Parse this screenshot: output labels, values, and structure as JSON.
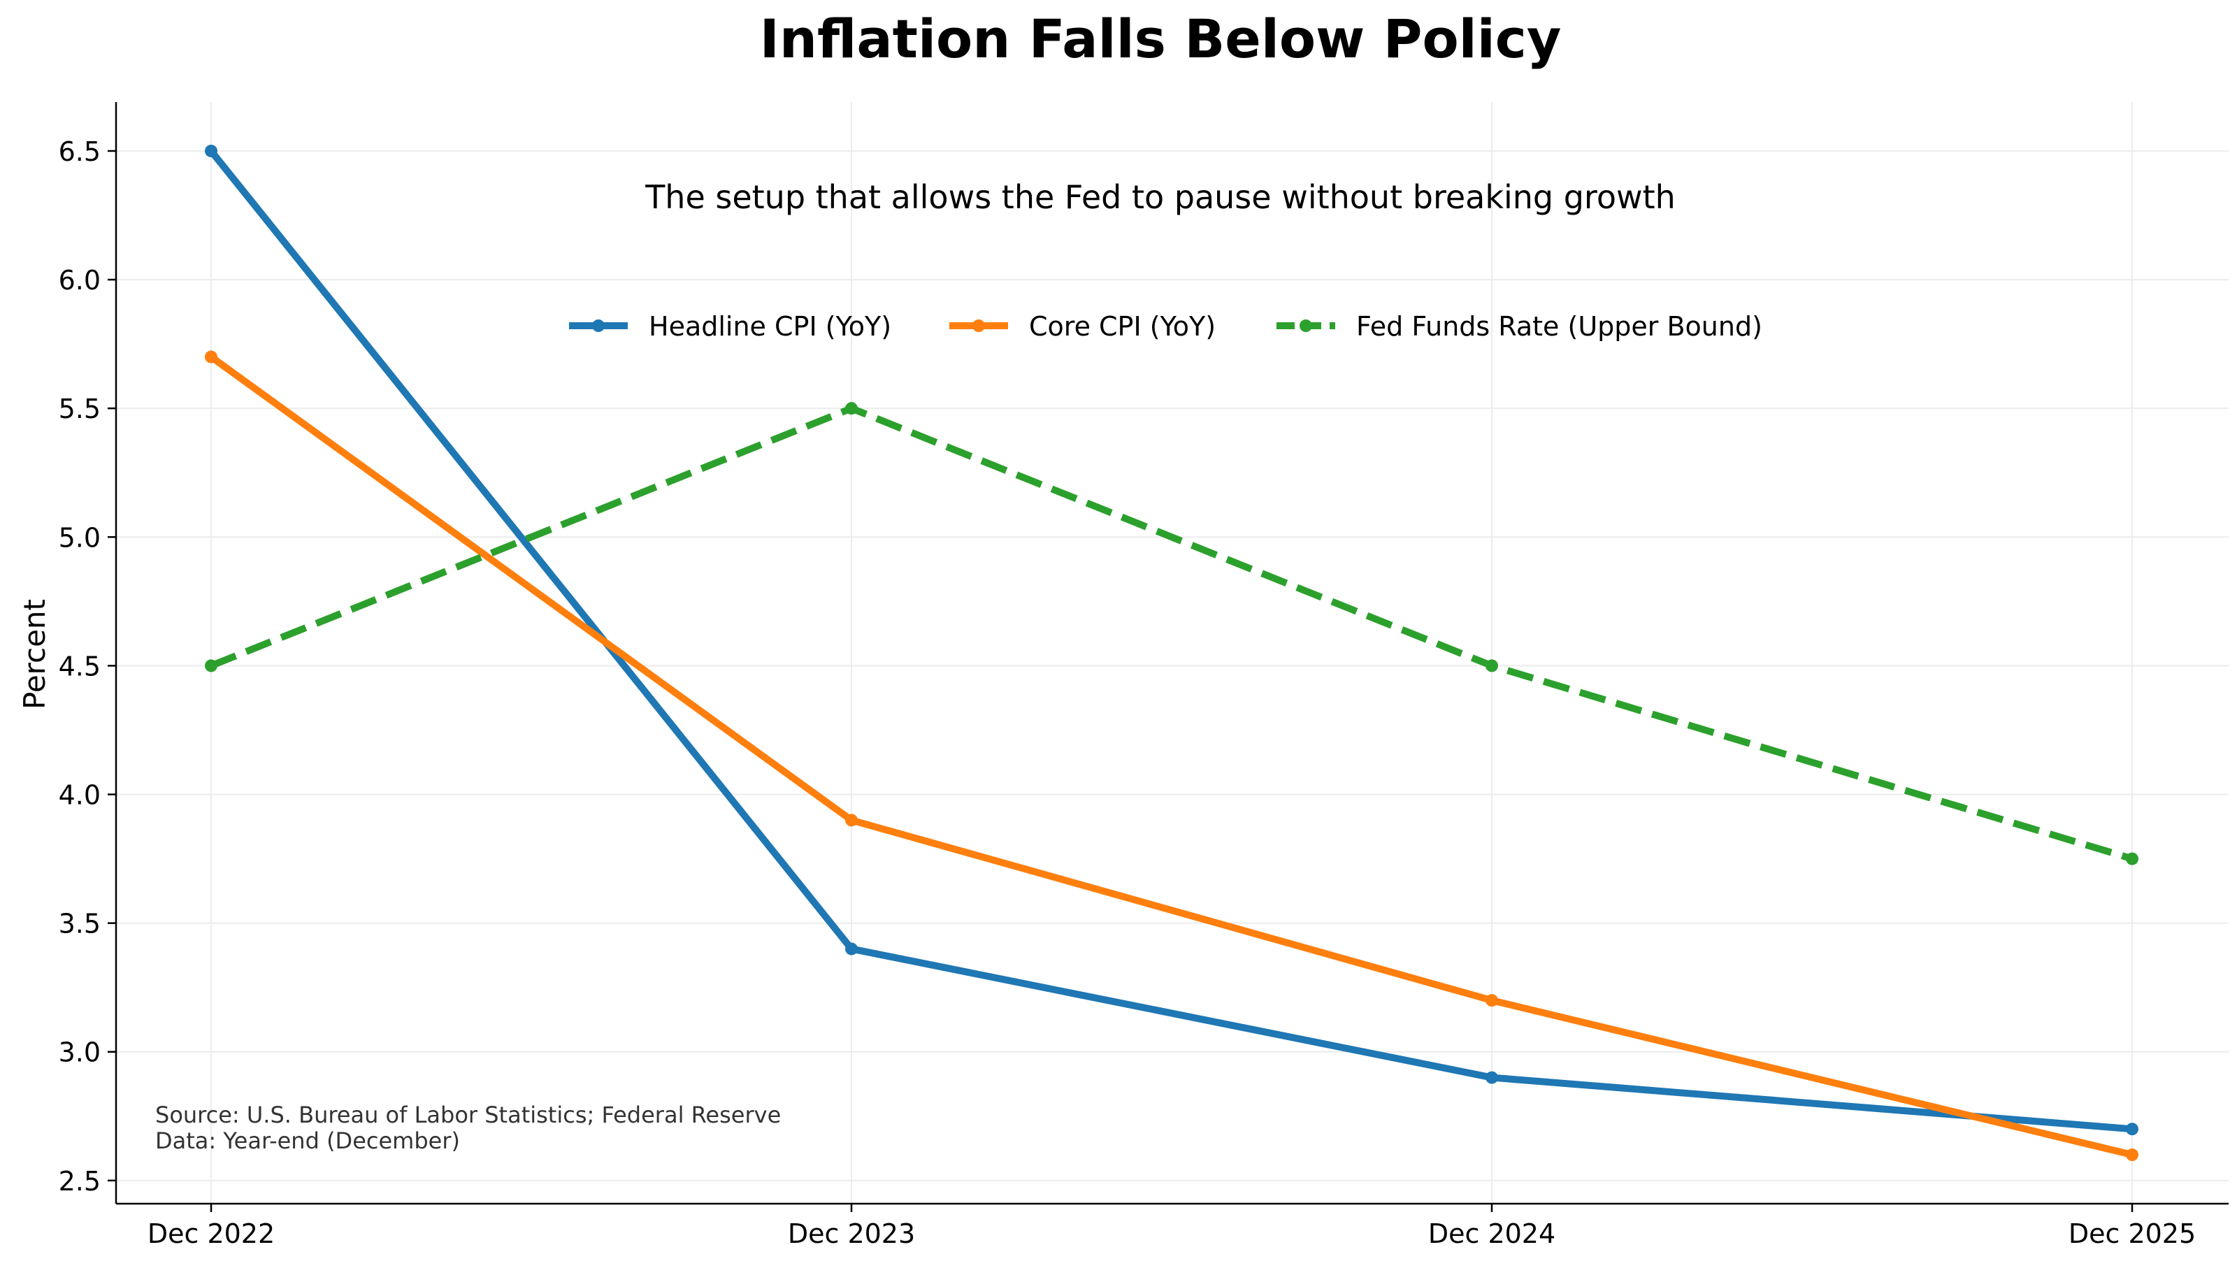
{
  "chart_data": {
    "type": "line",
    "title": "Inflation Falls Below Policy",
    "subtitle": "The setup that allows the Fed to pause without breaking growth",
    "xlabel": "",
    "ylabel": "Percent",
    "categories": [
      "Dec 2022",
      "Dec 2023",
      "Dec 2024",
      "Dec 2025"
    ],
    "ylim": [
      2.41,
      6.69
    ],
    "yticks": [
      2.5,
      3.0,
      3.5,
      4.0,
      4.5,
      5.0,
      5.5,
      6.0,
      6.5
    ],
    "ytick_labels": [
      "2.5",
      "3.0",
      "3.5",
      "4.0",
      "4.5",
      "5.0",
      "5.5",
      "6.0",
      "6.5"
    ],
    "grid": true,
    "legend_position": "top-center",
    "series": [
      {
        "name": "Headline CPI (YoY)",
        "values": [
          6.5,
          3.4,
          2.9,
          2.7
        ],
        "color": "#1f77b4",
        "style": "solid"
      },
      {
        "name": "Core CPI (YoY)",
        "values": [
          5.7,
          3.9,
          3.2,
          2.6
        ],
        "color": "#ff7f0e",
        "style": "solid"
      },
      {
        "name": "Fed Funds Rate (Upper Bound)",
        "values": [
          4.5,
          5.5,
          4.5,
          3.75
        ],
        "color": "#2ca02c",
        "style": "dashed"
      }
    ],
    "annotations": [
      "Source: U.S. Bureau of Labor Statistics; Federal Reserve",
      "Data: Year-end (December)"
    ]
  }
}
